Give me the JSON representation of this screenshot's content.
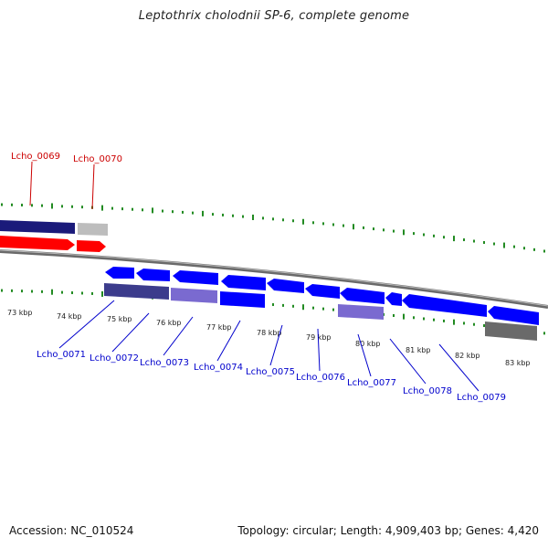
{
  "title": "Leptothrix cholodnii SP-6, complete genome",
  "footer": {
    "accession": "Accession: NC_010524",
    "summary": "Topology: circular; Length: 4,909,403 bp; Genes: 4,420"
  },
  "colors": {
    "forward_gene": "#ff0000",
    "forward_label": "#cc0000",
    "reverse_gene": "#0000ff",
    "reverse_label": "#0000cc",
    "tick": "#228b22",
    "backbone": "#888888"
  },
  "tick_labels": [
    "73 kbp",
    "74 kbp",
    "75 kbp",
    "76 kbp",
    "77 kbp",
    "78 kbp",
    "79 kbp",
    "80 kbp",
    "81 kbp",
    "82 kbp",
    "83 kbp"
  ],
  "forward_genes": [
    "Lcho_0069",
    "Lcho_0070"
  ],
  "reverse_genes": [
    "Lcho_0071",
    "Lcho_0072",
    "Lcho_0073",
    "Lcho_0074",
    "Lcho_0075",
    "Lcho_0076",
    "Lcho_0077",
    "Lcho_0078",
    "Lcho_0079"
  ]
}
